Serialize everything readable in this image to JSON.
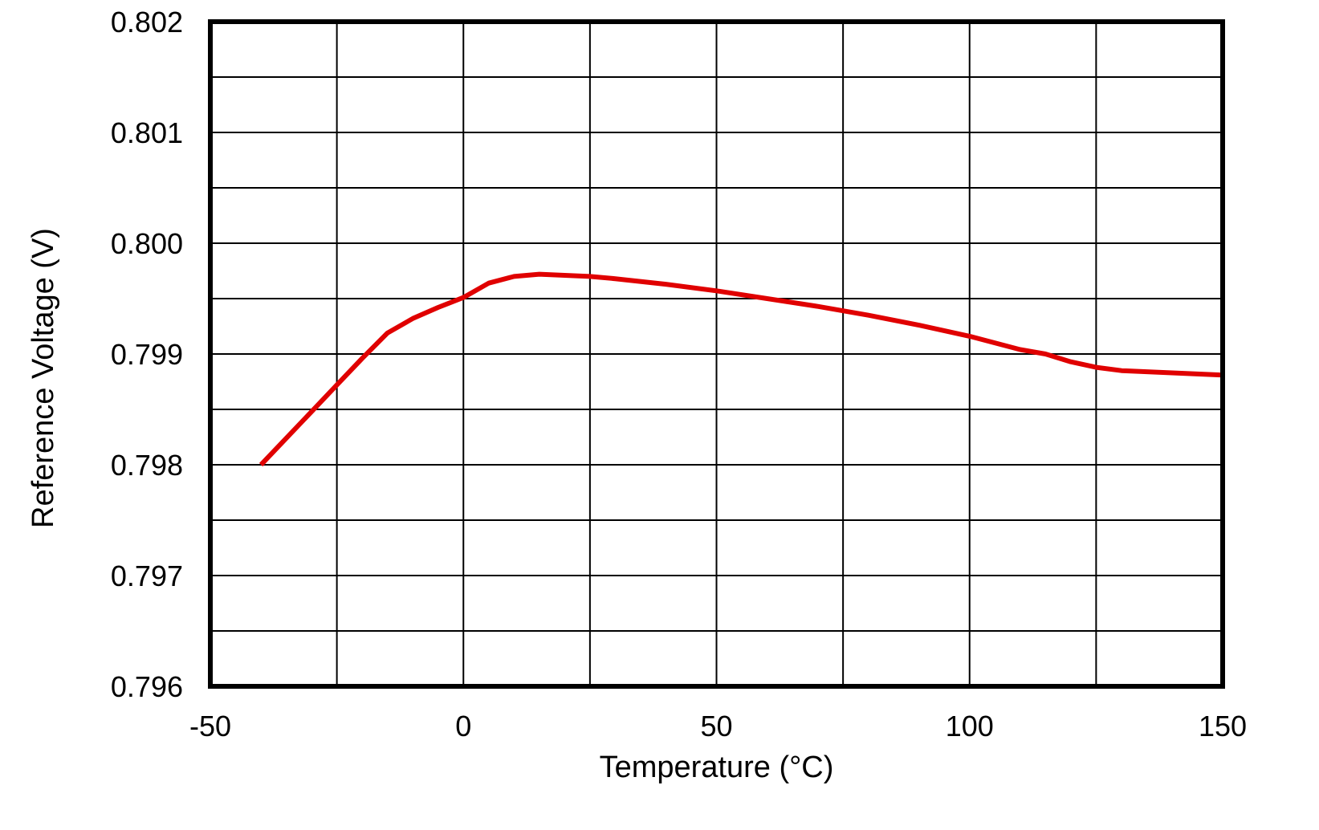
{
  "chart_data": {
    "type": "line",
    "title": "",
    "xlabel": "Temperature (°C)",
    "ylabel": "Reference Voltage (V)",
    "xlim": [
      -50,
      150
    ],
    "ylim": [
      0.796,
      0.802
    ],
    "x_ticks": [
      -50,
      0,
      50,
      100,
      150
    ],
    "x_tick_labels": [
      "-50",
      "0",
      "50",
      "100",
      "150"
    ],
    "y_ticks": [
      0.796,
      0.797,
      0.798,
      0.799,
      0.8,
      0.801,
      0.802
    ],
    "y_tick_labels": [
      "0.796",
      "0.797",
      "0.798",
      "0.799",
      "0.800",
      "0.801",
      "0.802"
    ],
    "x_gridlines": [
      -50,
      -25,
      0,
      25,
      50,
      75,
      100,
      125,
      150
    ],
    "y_gridlines": [
      0.796,
      0.7965,
      0.797,
      0.7975,
      0.798,
      0.7985,
      0.799,
      0.7995,
      0.8,
      0.8005,
      0.801,
      0.8015,
      0.802
    ],
    "grid": true,
    "legend": "none",
    "colors": {
      "line": "#e00000",
      "grid": "#000000",
      "background": "#ffffff"
    },
    "series": [
      {
        "x": [
          -40,
          -30,
          -25,
          -20,
          -15,
          -10,
          -5,
          0,
          5,
          10,
          15,
          20,
          25,
          30,
          40,
          50,
          60,
          70,
          80,
          90,
          100,
          110,
          115,
          120,
          125,
          130,
          140,
          150
        ],
        "values": [
          0.798,
          0.79848,
          0.79872,
          0.79896,
          0.79919,
          0.79932,
          0.79942,
          0.79951,
          0.79964,
          0.7997,
          0.79972,
          0.79971,
          0.7997,
          0.79968,
          0.79963,
          0.79957,
          0.7995,
          0.79943,
          0.79935,
          0.79926,
          0.79916,
          0.79904,
          0.799,
          0.79893,
          0.79888,
          0.79885,
          0.79883,
          0.79881
        ]
      }
    ]
  }
}
